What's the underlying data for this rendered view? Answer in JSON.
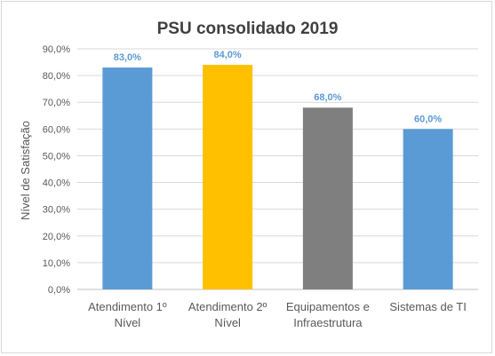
{
  "chart_data": {
    "type": "bar",
    "title": "PSU consolidado  2019",
    "ylabel": "Nível de Satisfação",
    "xlabel": "",
    "ylim": [
      0,
      90
    ],
    "yticks": [
      "0,0%",
      "10,0%",
      "20,0%",
      "30,0%",
      "40,0%",
      "50,0%",
      "60,0%",
      "70,0%",
      "80,0%",
      "90,0%"
    ],
    "categories": [
      [
        "Atendimento 1º",
        "Nível"
      ],
      [
        "Atendimento 2º",
        "Nível"
      ],
      [
        "Equipamentos e",
        "Infraestrutura"
      ],
      [
        "Sistemas de TI"
      ]
    ],
    "values": [
      83.0,
      84.0,
      68.0,
      60.0
    ],
    "data_labels": [
      "83,0%",
      "84,0%",
      "68,0%",
      "60,0%"
    ],
    "colors": [
      "#5b9bd5",
      "#ffc000",
      "#7f7f7f",
      "#5b9bd5"
    ],
    "label_color": "#5b9bd5",
    "grid": true,
    "legend": "none"
  }
}
